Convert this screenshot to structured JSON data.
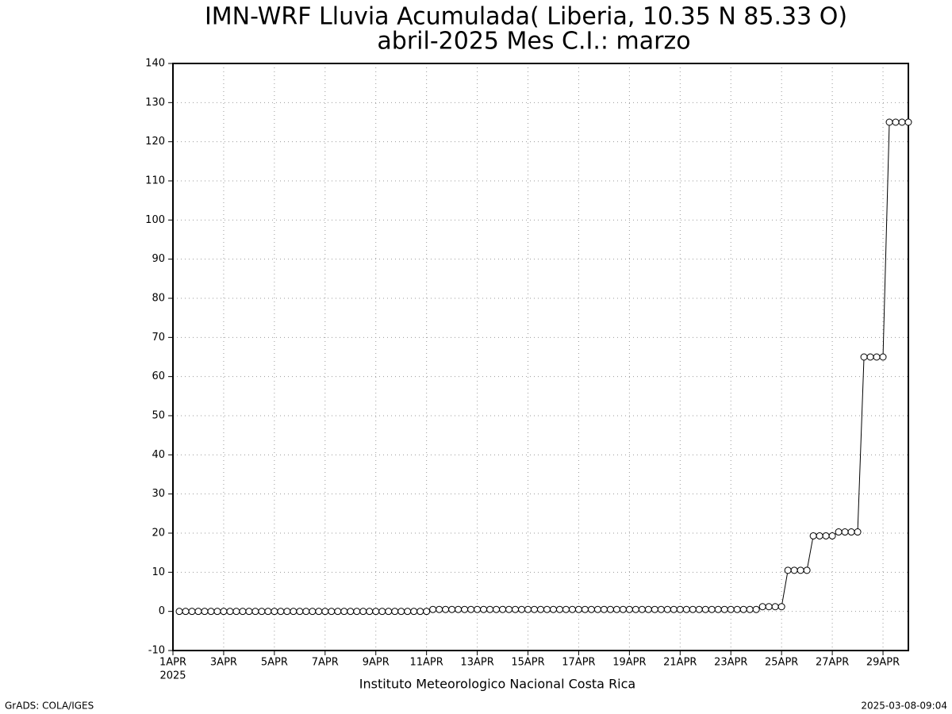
{
  "chart_data": {
    "type": "line",
    "title": "IMN-WRF  Lluvia Acumulada( Liberia, 10.35  N 85.33  O)",
    "subtitle": "abril-2025 Mes C.I.: marzo",
    "x_sublabel": "2025",
    "footer": "Instituto Meteorologico Nacional Costa Rica",
    "credit": "GrADS: COLA/IGES",
    "timestamp": "2025-03-08-09:04",
    "color": "#000000",
    "grid": true,
    "x": [
      1.25,
      1.5,
      1.75,
      2,
      2.25,
      2.5,
      2.75,
      3,
      3.25,
      3.5,
      3.75,
      4,
      4.25,
      4.5,
      4.75,
      5,
      5.25,
      5.5,
      5.75,
      6,
      6.25,
      6.5,
      6.75,
      7,
      7.25,
      7.5,
      7.75,
      8,
      8.25,
      8.5,
      8.75,
      9,
      9.25,
      9.5,
      9.75,
      10,
      10.25,
      10.5,
      10.75,
      11,
      11.25,
      11.5,
      11.75,
      12,
      12.25,
      12.5,
      12.75,
      13,
      13.25,
      13.5,
      13.75,
      14,
      14.25,
      14.5,
      14.75,
      15,
      15.25,
      15.5,
      15.75,
      16,
      16.25,
      16.5,
      16.75,
      17,
      17.25,
      17.5,
      17.75,
      18,
      18.25,
      18.5,
      18.75,
      19,
      19.25,
      19.5,
      19.75,
      20,
      20.25,
      20.5,
      20.75,
      21,
      21.25,
      21.5,
      21.75,
      22,
      22.25,
      22.5,
      22.75,
      23,
      23.25,
      23.5,
      23.75,
      24,
      24.25,
      24.5,
      24.75,
      25,
      25.25,
      25.5,
      25.75,
      26,
      26.25,
      26.5,
      26.75,
      27,
      27.25,
      27.5,
      27.75,
      28,
      28.25,
      28.5,
      28.75,
      29,
      29.25,
      29.5,
      29.75,
      30
    ],
    "values": [
      0,
      0,
      0,
      0,
      0,
      0,
      0,
      0,
      0,
      0,
      0,
      0,
      0,
      0,
      0,
      0,
      0,
      0,
      0,
      0,
      0,
      0,
      0,
      0,
      0,
      0,
      0,
      0,
      0,
      0,
      0,
      0,
      0,
      0,
      0,
      0,
      0,
      0,
      0,
      0,
      0.5,
      0.5,
      0.5,
      0.5,
      0.5,
      0.5,
      0.5,
      0.5,
      0.5,
      0.5,
      0.5,
      0.5,
      0.5,
      0.5,
      0.5,
      0.5,
      0.5,
      0.5,
      0.5,
      0.5,
      0.5,
      0.5,
      0.5,
      0.5,
      0.5,
      0.5,
      0.5,
      0.5,
      0.5,
      0.5,
      0.5,
      0.5,
      0.5,
      0.5,
      0.5,
      0.5,
      0.5,
      0.5,
      0.5,
      0.5,
      0.5,
      0.5,
      0.5,
      0.5,
      0.5,
      0.5,
      0.5,
      0.5,
      0.5,
      0.5,
      0.5,
      0.5,
      1.2,
      1.2,
      1.2,
      1.2,
      10.5,
      10.5,
      10.5,
      10.5,
      19.3,
      19.3,
      19.3,
      19.3,
      20.3,
      20.3,
      20.3,
      20.3,
      65,
      65,
      65,
      65,
      125,
      125,
      125,
      125
    ],
    "xlim": [
      1,
      30
    ],
    "xticks": [
      {
        "value": 1,
        "label": "1APR"
      },
      {
        "value": 3,
        "label": "3APR"
      },
      {
        "value": 5,
        "label": "5APR"
      },
      {
        "value": 7,
        "label": "7APR"
      },
      {
        "value": 9,
        "label": "9APR"
      },
      {
        "value": 11,
        "label": "11APR"
      },
      {
        "value": 13,
        "label": "13APR"
      },
      {
        "value": 15,
        "label": "15APR"
      },
      {
        "value": 17,
        "label": "17APR"
      },
      {
        "value": 19,
        "label": "19APR"
      },
      {
        "value": 21,
        "label": "21APR"
      },
      {
        "value": 23,
        "label": "23APR"
      },
      {
        "value": 25,
        "label": "25APR"
      },
      {
        "value": 27,
        "label": "27APR"
      },
      {
        "value": 29,
        "label": "29APR"
      }
    ],
    "ylim": [
      -10,
      140
    ],
    "yticks": [
      -10,
      0,
      10,
      20,
      30,
      40,
      50,
      60,
      70,
      80,
      90,
      100,
      110,
      120,
      130,
      140
    ]
  }
}
